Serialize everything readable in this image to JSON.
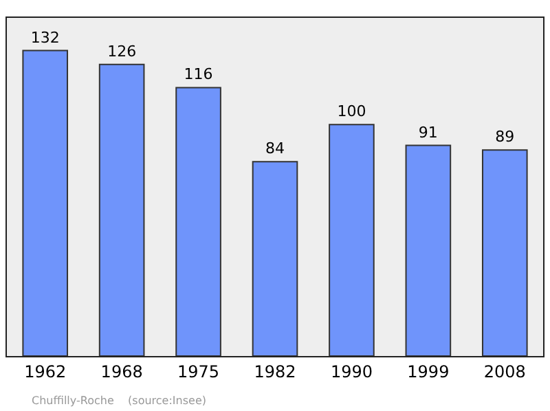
{
  "chart_data": {
    "type": "bar",
    "categories": [
      "1962",
      "1968",
      "1975",
      "1982",
      "1990",
      "1999",
      "2008"
    ],
    "values": [
      132,
      126,
      116,
      84,
      100,
      91,
      89
    ],
    "color": "#6f94fb",
    "data_labels": true,
    "grid": false,
    "annotations": [
      "Chuffilly-Roche    (source:Insee)"
    ]
  }
}
